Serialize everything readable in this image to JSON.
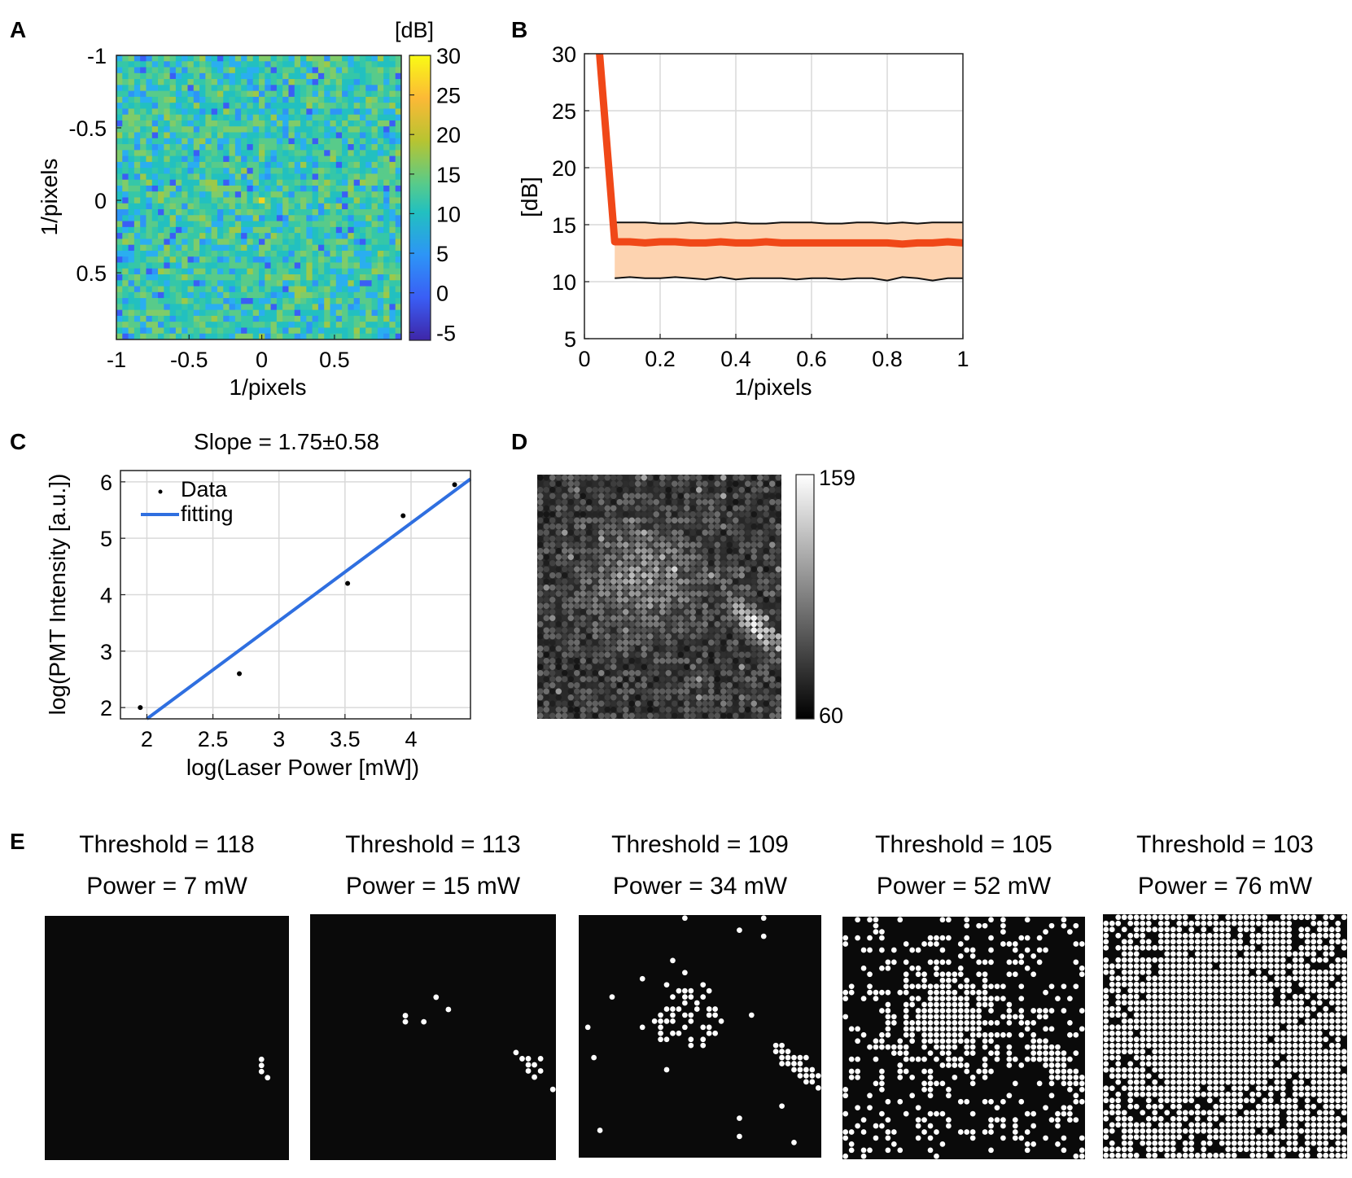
{
  "panel_labels": {
    "a": "A",
    "b": "B",
    "c": "C",
    "d": "D",
    "e": "E"
  },
  "colors": {
    "fill": "#fdd3b0",
    "mean_line": "#f04818",
    "fit_line": "#2f6fe0",
    "grid": "#d9d9d9",
    "axis": "#222222"
  },
  "panel_a": {
    "xlabel": "1/pixels",
    "ylabel": "1/pixels",
    "x_ticks": [
      "-1",
      "-0.5",
      "0",
      "0.5"
    ],
    "y_ticks": [
      "-1",
      "-0.5",
      "0",
      "0.5"
    ],
    "colorbar_title": "[dB]",
    "colorbar_ticks": [
      "30",
      "25",
      "20",
      "15",
      "10",
      "5",
      "0",
      "-5"
    ]
  },
  "panel_d": {
    "colorbar_ticks": [
      "159",
      "60"
    ]
  },
  "chart_data": [
    {
      "id": "A",
      "type": "heatmap",
      "title": "",
      "xlabel": "1/pixels",
      "ylabel": "1/pixels",
      "x_range": [
        -1,
        0.96
      ],
      "y_range": [
        -1,
        0.96
      ],
      "x_ticks": [
        -1,
        -0.5,
        0,
        0.5
      ],
      "y_ticks": [
        -1,
        -0.5,
        0,
        0.5
      ],
      "colorbar": {
        "label": "[dB]",
        "min": -6,
        "max": 30,
        "ticks": [
          30,
          25,
          20,
          15,
          10,
          5,
          0,
          -5
        ]
      },
      "grid_size": [
        48,
        48
      ],
      "typical_value": 13,
      "center_value": 24
    },
    {
      "id": "B",
      "type": "line",
      "title": "",
      "xlabel": "1/pixels",
      "ylabel": "[dB]",
      "xlim": [
        0,
        1
      ],
      "ylim": [
        5,
        30
      ],
      "x_ticks": [
        "0",
        "0.2",
        "0.4",
        "0.6",
        "0.8",
        "1"
      ],
      "y_ticks": [
        "30",
        "25",
        "20",
        "15",
        "10",
        "5"
      ],
      "grid": true,
      "x": [
        0.04,
        0.08,
        0.12,
        0.16,
        0.2,
        0.24,
        0.28,
        0.32,
        0.36,
        0.4,
        0.44,
        0.48,
        0.52,
        0.56,
        0.6,
        0.64,
        0.68,
        0.72,
        0.76,
        0.8,
        0.84,
        0.88,
        0.92,
        0.96,
        1.0
      ],
      "series": [
        {
          "name": "mean",
          "values": [
            30.0,
            13.5,
            13.5,
            13.4,
            13.5,
            13.5,
            13.4,
            13.4,
            13.5,
            13.4,
            13.4,
            13.5,
            13.4,
            13.4,
            13.4,
            13.4,
            13.4,
            13.4,
            13.4,
            13.4,
            13.3,
            13.4,
            13.4,
            13.5,
            13.4
          ]
        },
        {
          "name": "upper",
          "values": [
            30.0,
            15.2,
            15.2,
            15.2,
            15.1,
            15.1,
            15.2,
            15.1,
            15.1,
            15.2,
            15.1,
            15.1,
            15.2,
            15.2,
            15.2,
            15.1,
            15.1,
            15.2,
            15.2,
            15.1,
            15.2,
            15.1,
            15.2,
            15.2,
            15.2
          ]
        },
        {
          "name": "lower",
          "values": [
            30.0,
            10.3,
            10.4,
            10.3,
            10.3,
            10.4,
            10.3,
            10.2,
            10.4,
            10.2,
            10.3,
            10.3,
            10.3,
            10.2,
            10.3,
            10.3,
            10.2,
            10.3,
            10.3,
            10.1,
            10.4,
            10.3,
            10.1,
            10.3,
            10.3
          ]
        }
      ]
    },
    {
      "id": "C",
      "type": "scatter",
      "title": "Slope = 1.75±0.58",
      "xlabel": "log(Laser Power [mW])",
      "ylabel": "log(PMT Intensity [a.u.])",
      "xlim": [
        1.8,
        4.45
      ],
      "ylim": [
        1.8,
        6.2
      ],
      "x_ticks": [
        "2",
        "2.5",
        "3",
        "3.5",
        "4"
      ],
      "y_ticks": [
        "6",
        "5",
        "4",
        "3",
        "2"
      ],
      "grid": true,
      "legend": {
        "position": "top-left",
        "entries": [
          "Data",
          "fitting"
        ]
      },
      "series": [
        {
          "name": "Data",
          "x": [
            1.95,
            2.7,
            3.52,
            3.94,
            4.33
          ],
          "y": [
            2.0,
            2.6,
            4.2,
            5.4,
            5.95
          ]
        },
        {
          "name": "fitting",
          "x": [
            2.0,
            4.45
          ],
          "y": [
            1.8,
            6.05
          ]
        }
      ]
    },
    {
      "id": "D",
      "type": "heatmap",
      "title": "",
      "colorbar": {
        "min": 60,
        "max": 159,
        "ticks": [
          159,
          60
        ]
      },
      "grid_size": [
        40,
        40
      ]
    },
    {
      "id": "E",
      "type": "heatmap",
      "panels": [
        {
          "threshold_label": "Threshold = 118",
          "power_label": "Power = 7 mW",
          "threshold": 118,
          "power_mw": 7
        },
        {
          "threshold_label": "Threshold = 113",
          "power_label": "Power = 15 mW",
          "threshold": 113,
          "power_mw": 15
        },
        {
          "threshold_label": "Threshold = 109",
          "power_label": "Power = 34 mW",
          "threshold": 109,
          "power_mw": 34
        },
        {
          "threshold_label": "Threshold = 105",
          "power_label": "Power = 52 mW",
          "threshold": 105,
          "power_mw": 52
        },
        {
          "threshold_label": "Threshold = 103",
          "power_label": "Power = 76 mW",
          "threshold": 103,
          "power_mw": 76
        }
      ]
    }
  ]
}
